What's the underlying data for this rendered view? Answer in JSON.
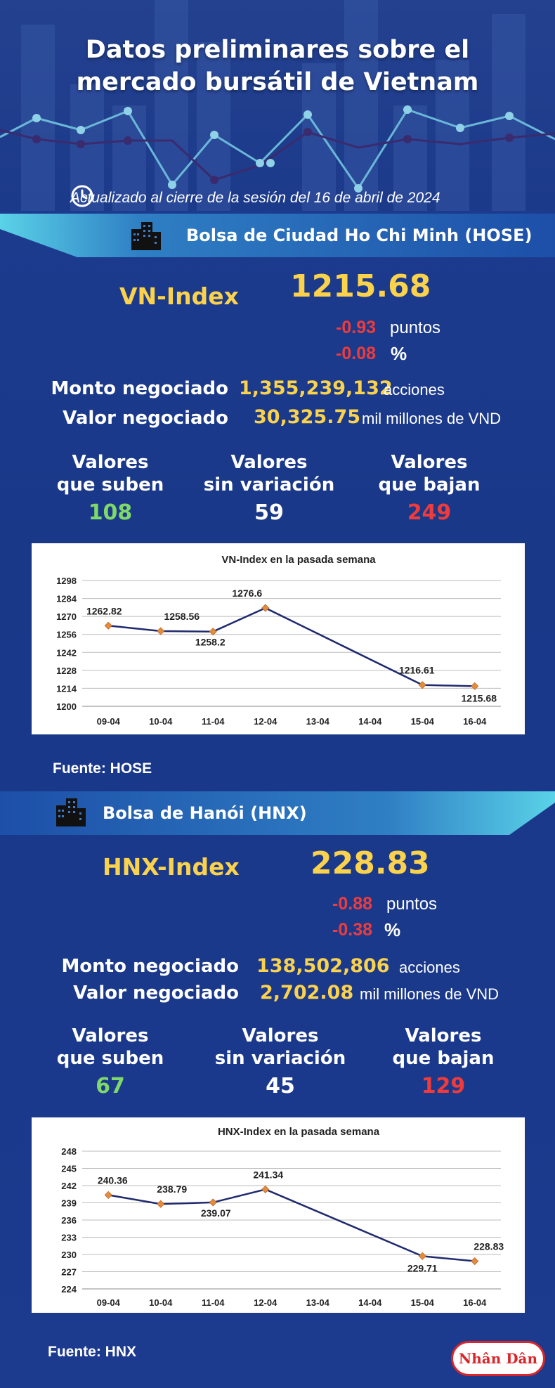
{
  "header": {
    "title_line1": "Datos preliminares sobre el",
    "title_line2": "mercado bursátil de Vietnam",
    "update_text": "Actualizado al cierre de la sesión del 16 de abril de 2024",
    "icon": "clock-icon"
  },
  "hose": {
    "banner": "Bolsa de Ciudad Ho Chi Minh (HOSE)",
    "index_label": "VN-Index",
    "index_value": "1215.68",
    "change_points": "-0.93",
    "points_unit": "puntos",
    "change_percent": "-0.08",
    "percent_unit": "%",
    "volume_label": "Monto negociado",
    "volume_value": "1,355,239,132",
    "volume_unit": "acciones",
    "value_label": "Valor negociado",
    "value_value": "30,325.75",
    "value_unit": "mil millones de VND",
    "up_label1": "Valores",
    "up_label2": "que suben",
    "up_count": "108",
    "flat_label1": "Valores",
    "flat_label2": "sin variación",
    "flat_count": "59",
    "down_label1": "Valores",
    "down_label2": "que bajan",
    "down_count": "249",
    "source": "Fuente: HOSE"
  },
  "hnx": {
    "banner": "Bolsa de Hanói (HNX)",
    "index_label": "HNX-Index",
    "index_value": "228.83",
    "change_points": "-0.88",
    "points_unit": "puntos",
    "change_percent": "-0.38",
    "percent_unit": "%",
    "volume_label": "Monto negociado",
    "volume_value": "138,502,806",
    "volume_unit": "acciones",
    "value_label": "Valor negociado",
    "value_value": "2,702.08",
    "value_unit": "mil millones de VND",
    "up_label1": "Valores",
    "up_label2": "que suben",
    "up_count": "67",
    "flat_label1": "Valores",
    "flat_label2": "sin variación",
    "flat_count": "45",
    "down_label1": "Valores",
    "down_label2": "que bajan",
    "down_count": "129",
    "source": "Fuente:  HNX"
  },
  "logo_text": "Nhân Dân",
  "colors": {
    "background": "#1b3a8c",
    "accent_yellow": "#fbd24c",
    "up_green": "#7fd96a",
    "down_red": "#ef3b3b",
    "banner_cyan": "#3fc6e0",
    "line": "#1f2a6e",
    "marker": "#e58b3c"
  },
  "chart_data": [
    {
      "type": "line",
      "title": "VN-Index en la pasada semana",
      "categories": [
        "09-04",
        "10-04",
        "11-04",
        "12-04",
        "13-04",
        "14-04",
        "15-04",
        "16-04"
      ],
      "series": [
        {
          "values": [
            1262.82,
            1258.56,
            1258.2,
            1276.6,
            null,
            null,
            1216.61,
            1215.68
          ]
        }
      ],
      "data_labels": [
        "1262.82",
        "1258.56",
        "1258.2",
        "1276.6",
        "",
        "",
        "1216.61",
        "1215.68"
      ],
      "yticks": [
        "1298",
        "1284",
        "1270",
        "1256",
        "1242",
        "1228",
        "1214",
        "1200"
      ],
      "ylim": [
        1200,
        1298
      ],
      "grid": true
    },
    {
      "type": "line",
      "title": "HNX-Index en la pasada semana",
      "categories": [
        "09-04",
        "10-04",
        "11-04",
        "12-04",
        "13-04",
        "14-04",
        "15-04",
        "16-04"
      ],
      "series": [
        {
          "values": [
            240.36,
            238.79,
            239.07,
            241.34,
            null,
            null,
            229.71,
            228.83
          ]
        }
      ],
      "data_labels": [
        "240.36",
        "238.79",
        "239.07",
        "241.34",
        "",
        "",
        "229.71",
        "228.83"
      ],
      "yticks": [
        "248",
        "245",
        "242",
        "239",
        "236",
        "233",
        "230",
        "227",
        "224"
      ],
      "ylim": [
        224,
        248
      ],
      "grid": true
    }
  ]
}
